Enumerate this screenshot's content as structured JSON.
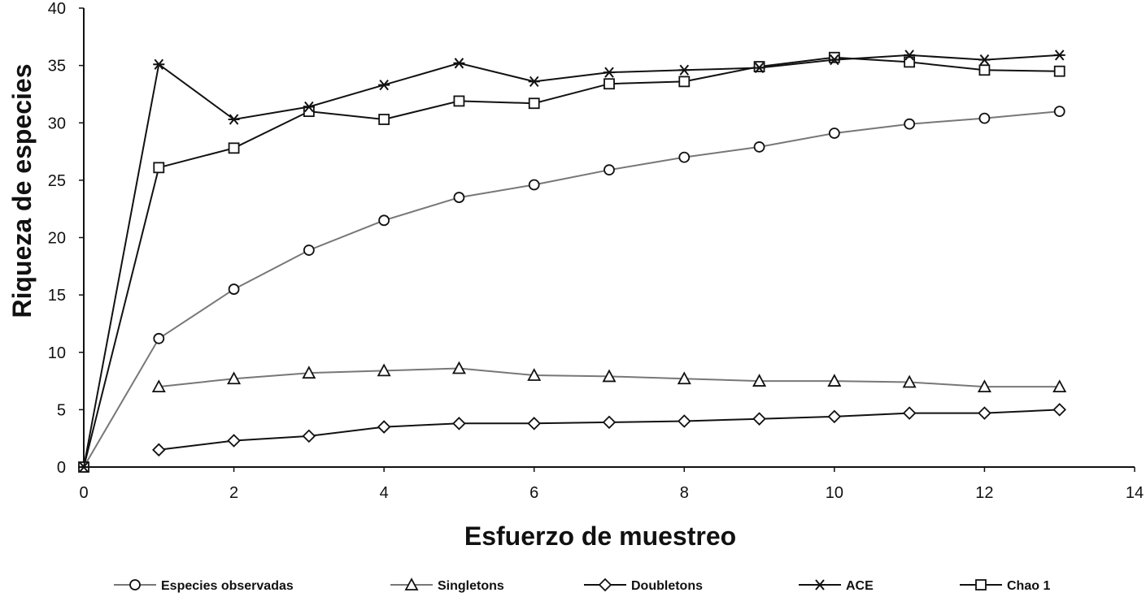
{
  "chart_data": {
    "type": "line",
    "title": "",
    "xlabel": "Esfuerzo de muestreo",
    "ylabel": "Riqueza de especies",
    "xlim": [
      0,
      14
    ],
    "ylim": [
      0,
      40
    ],
    "x_ticks": [
      "0",
      "2",
      "4",
      "6",
      "8",
      "10",
      "12",
      "14"
    ],
    "y_ticks": [
      "0",
      "5",
      "10",
      "15",
      "20",
      "25",
      "30",
      "35",
      "40"
    ],
    "grid": false,
    "legend_position": "bottom",
    "series": [
      {
        "name": "Especies observadas",
        "marker": "circle",
        "color": "#777777",
        "points": [
          [
            0,
            0
          ],
          [
            1,
            11.2
          ],
          [
            2,
            15.5
          ],
          [
            3,
            18.9
          ],
          [
            4,
            21.5
          ],
          [
            5,
            23.5
          ],
          [
            6,
            24.6
          ],
          [
            7,
            25.9
          ],
          [
            8,
            27.0
          ],
          [
            9,
            27.9
          ],
          [
            10,
            29.1
          ],
          [
            11,
            29.9
          ],
          [
            12,
            30.4
          ],
          [
            13,
            31.0
          ]
        ]
      },
      {
        "name": "Singletons",
        "marker": "triangle",
        "color": "#777777",
        "points": [
          [
            1,
            7.0
          ],
          [
            2,
            7.7
          ],
          [
            3,
            8.2
          ],
          [
            4,
            8.4
          ],
          [
            5,
            8.6
          ],
          [
            6,
            8.0
          ],
          [
            7,
            7.9
          ],
          [
            8,
            7.7
          ],
          [
            9,
            7.5
          ],
          [
            10,
            7.5
          ],
          [
            11,
            7.4
          ],
          [
            12,
            7.0
          ],
          [
            13,
            7.0
          ]
        ]
      },
      {
        "name": "Doubletons",
        "marker": "diamond",
        "color": "#111111",
        "points": [
          [
            1,
            1.5
          ],
          [
            2,
            2.3
          ],
          [
            3,
            2.7
          ],
          [
            4,
            3.5
          ],
          [
            5,
            3.8
          ],
          [
            6,
            3.8
          ],
          [
            7,
            3.9
          ],
          [
            8,
            4.0
          ],
          [
            9,
            4.2
          ],
          [
            10,
            4.4
          ],
          [
            11,
            4.7
          ],
          [
            12,
            4.7
          ],
          [
            13,
            5.0
          ]
        ]
      },
      {
        "name": "ACE",
        "marker": "star",
        "color": "#111111",
        "points": [
          [
            0,
            0
          ],
          [
            1,
            35.1
          ],
          [
            2,
            30.3
          ],
          [
            3,
            31.4
          ],
          [
            4,
            33.3
          ],
          [
            5,
            35.2
          ],
          [
            6,
            33.6
          ],
          [
            7,
            34.4
          ],
          [
            8,
            34.6
          ],
          [
            9,
            34.8
          ],
          [
            10,
            35.5
          ],
          [
            11,
            35.9
          ],
          [
            12,
            35.5
          ],
          [
            13,
            35.9
          ]
        ]
      },
      {
        "name": "Chao 1",
        "marker": "square",
        "color": "#111111",
        "points": [
          [
            0,
            0
          ],
          [
            1,
            26.1
          ],
          [
            2,
            27.8
          ],
          [
            3,
            31.0
          ],
          [
            4,
            30.3
          ],
          [
            5,
            31.9
          ],
          [
            6,
            31.7
          ],
          [
            7,
            33.4
          ],
          [
            8,
            33.6
          ],
          [
            9,
            34.9
          ],
          [
            10,
            35.7
          ],
          [
            11,
            35.3
          ],
          [
            12,
            34.6
          ],
          [
            13,
            34.5
          ]
        ]
      }
    ]
  }
}
